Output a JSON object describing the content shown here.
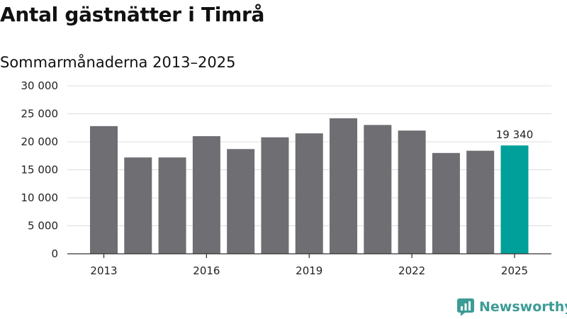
{
  "title": "Antal gästnätter i Timrå",
  "subtitle": "Sommarmånaderna 2013–2025",
  "brand": {
    "name": "Newsworthy"
  },
  "colors": {
    "bar": "#6e6e73",
    "highlight": "#00a09a",
    "grid": "#dcdcdc",
    "axis": "#333333",
    "brand": "#3d9b95"
  },
  "chart_data": {
    "type": "bar",
    "title": "Antal gästnätter i Timrå",
    "subtitle": "Sommarmånaderna 2013–2025",
    "xlabel": "",
    "ylabel": "",
    "categories": [
      "2013",
      "2014",
      "2015",
      "2016",
      "2017",
      "2018",
      "2019",
      "2020",
      "2021",
      "2022",
      "2023",
      "2024",
      "2025"
    ],
    "values": [
      22800,
      17200,
      17200,
      21000,
      18700,
      20800,
      21500,
      24200,
      23000,
      22000,
      18000,
      18400,
      19340
    ],
    "x_tick_labels": [
      "2013",
      "2016",
      "2019",
      "2022",
      "2025"
    ],
    "y_ticks": [
      0,
      5000,
      10000,
      15000,
      20000,
      25000,
      30000
    ],
    "y_tick_labels": [
      "0",
      "5 000",
      "10 000",
      "15 000",
      "20 000",
      "25 000",
      "30 000"
    ],
    "ylim": [
      0,
      30000
    ],
    "grid": true,
    "legend": "none",
    "highlight_index": 12,
    "annotations": [
      {
        "category": "2025",
        "text": "19 340"
      }
    ]
  }
}
